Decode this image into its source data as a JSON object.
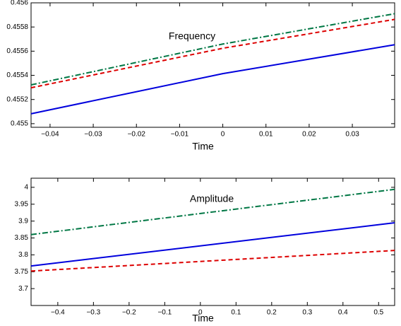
{
  "chart_data": [
    {
      "type": "line",
      "title": "Frequency",
      "x_label": "Time",
      "x": [
        -0.0444,
        0,
        0.0398
      ],
      "series": [
        {
          "color": "#0000dd",
          "style": "solid",
          "values": [
            0.455082,
            0.455414,
            0.455653
          ]
        },
        {
          "color": "#dd0000",
          "style": "dashed",
          "values": [
            0.455297,
            0.455624,
            0.455863
          ]
        },
        {
          "color": "#007744",
          "style": "dashdot",
          "values": [
            0.455321,
            0.455659,
            0.45591
          ]
        }
      ],
      "xlim": [
        -0.0444,
        0.0398
      ],
      "ylim": [
        0.45497,
        0.456
      ],
      "xticks": [
        {
          "value": -0.04,
          "label": "−0.04"
        },
        {
          "value": -0.03,
          "label": "−0.03"
        },
        {
          "value": -0.02,
          "label": "−0.02"
        },
        {
          "value": -0.01,
          "label": "−0.01"
        },
        0,
        0.01,
        0.02,
        0.03
      ],
      "yticks": [
        0.455,
        0.4552,
        0.4554,
        0.4556,
        0.4558,
        0.456
      ]
    },
    {
      "type": "line",
      "title": "Amplitude",
      "x_label": "Time",
      "x": [
        -0.475,
        0.545
      ],
      "series": [
        {
          "color": "#0000dd",
          "style": "solid",
          "values": [
            3.767,
            3.895
          ]
        },
        {
          "color": "#dd0000",
          "style": "dashed",
          "values": [
            3.752,
            3.813
          ]
        },
        {
          "color": "#007744",
          "style": "dashdot",
          "values": [
            3.86,
            3.994
          ]
        }
      ],
      "xlim": [
        -0.475,
        0.545
      ],
      "ylim": [
        3.65,
        4.027
      ],
      "xticks": [
        {
          "value": -0.4,
          "label": "−0.4"
        },
        {
          "value": -0.3,
          "label": "−0.3"
        },
        {
          "value": -0.2,
          "label": "−0.2"
        },
        {
          "value": -0.1,
          "label": "−0.1"
        },
        0,
        0.1,
        0.2,
        0.3,
        0.4,
        0.5
      ],
      "yticks": [
        3.7,
        3.75,
        3.8,
        3.85,
        3.9,
        3.95,
        4
      ]
    }
  ]
}
